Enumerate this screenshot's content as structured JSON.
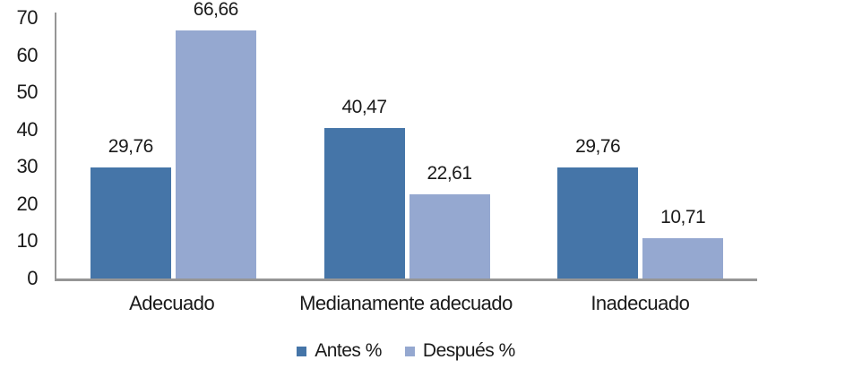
{
  "chart_data": {
    "type": "bar",
    "title": "",
    "xlabel": "",
    "ylabel": "",
    "categories": [
      "Adecuado",
      "Medianamente adecuado",
      "Inadecuado"
    ],
    "series": [
      {
        "name": "Antes %",
        "color": "#4575a8",
        "values": [
          29.76,
          40.47,
          29.76
        ],
        "labels": [
          "29,76",
          "40,47",
          "29,76"
        ]
      },
      {
        "name": "Después %",
        "color": "#95a8d0",
        "values": [
          66.66,
          22.61,
          10.71
        ],
        "labels": [
          "66,66",
          "22,61",
          "10,71"
        ]
      }
    ],
    "ylim": [
      0,
      70
    ],
    "yticks": [
      0,
      10,
      20,
      30,
      40,
      50,
      60,
      70
    ],
    "grid": false,
    "legend_position": "bottom"
  },
  "style": {
    "axis_line_color": "#969696",
    "text_color": "#1a1a1a",
    "background": "#ffffff"
  }
}
